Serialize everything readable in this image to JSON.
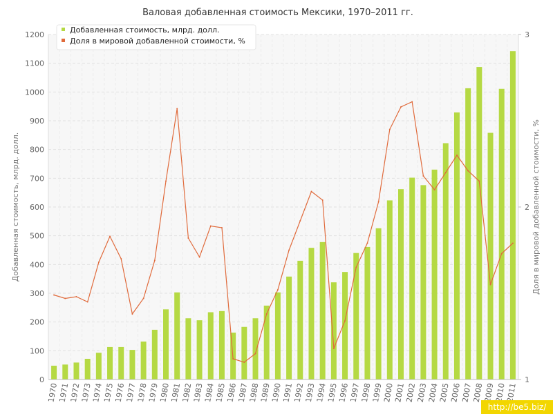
{
  "chart_data": {
    "type": "bar",
    "title": "Валовая добавленная стоимость Мексики, 1970–2011 гг.",
    "ylabel": "Добавленная стоимость, млрд. долл.",
    "y2label": "Доля в мировой добавленной стоимости, %",
    "ylim": [
      0,
      1200
    ],
    "y2lim": [
      1,
      3
    ],
    "yticks": [
      "0",
      "100",
      "200",
      "300",
      "400",
      "500",
      "600",
      "700",
      "800",
      "900",
      "1000",
      "1100",
      "1200"
    ],
    "y2ticks": [
      "1",
      "2",
      "3"
    ],
    "grid": true,
    "legend_position": "top-left",
    "categories": [
      "1970",
      "1971",
      "1972",
      "1973",
      "1974",
      "1975",
      "1976",
      "1977",
      "1978",
      "1979",
      "1980",
      "1981",
      "1982",
      "1983",
      "1984",
      "1985",
      "1986",
      "1987",
      "1988",
      "1989",
      "1990",
      "1991",
      "1992",
      "1993",
      "1994",
      "1995",
      "1996",
      "1997",
      "1998",
      "1999",
      "2000",
      "2001",
      "2002",
      "2003",
      "2004",
      "2005",
      "2006",
      "2007",
      "2008",
      "2009",
      "2010",
      "2011"
    ],
    "series": [
      {
        "name": "Добавленная стоимость, млрд. долл.",
        "type": "bar",
        "axis": "left",
        "color": "#b5d943",
        "values": [
          48,
          52,
          59,
          72,
          93,
          113,
          113,
          103,
          132,
          173,
          244,
          303,
          213,
          206,
          234,
          238,
          163,
          183,
          213,
          257,
          303,
          358,
          413,
          458,
          478,
          338,
          374,
          440,
          461,
          526,
          623,
          662,
          702,
          676,
          730,
          822,
          929,
          1013,
          1087,
          858,
          1011,
          1142
        ]
      },
      {
        "name": "Доля в мировой добавленной стоимости, %",
        "type": "line",
        "axis": "right",
        "color": "#e06a3b",
        "values": [
          1.49,
          1.47,
          1.48,
          1.45,
          1.68,
          1.83,
          1.7,
          1.38,
          1.47,
          1.69,
          2.15,
          2.57,
          1.82,
          1.71,
          1.89,
          1.88,
          1.12,
          1.1,
          1.15,
          1.38,
          1.52,
          1.75,
          1.92,
          2.09,
          2.04,
          1.18,
          1.34,
          1.65,
          1.79,
          2.03,
          2.45,
          2.58,
          2.61,
          2.18,
          2.1,
          2.2,
          2.3,
          2.21,
          2.15,
          1.55,
          1.73,
          1.79
        ]
      }
    ]
  },
  "watermark": "http://be5.biz/"
}
